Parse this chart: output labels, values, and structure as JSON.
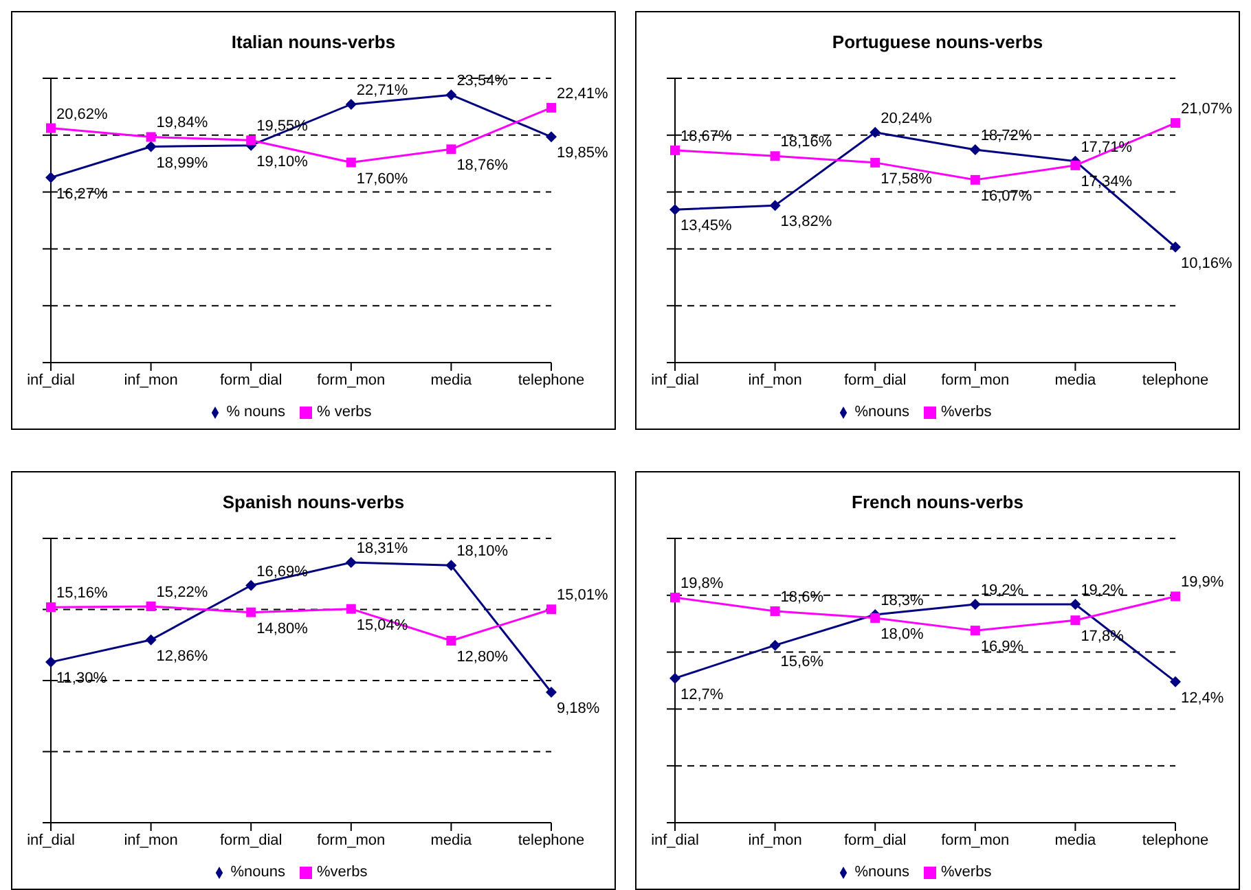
{
  "chart_data": [
    {
      "type": "line",
      "title": "Italian nouns-verbs",
      "categories": [
        "inf_dial",
        "inf_mon",
        "form_dial",
        "form_mon",
        "media",
        "telephone"
      ],
      "ylim": [
        0,
        25
      ],
      "yticks": [
        {
          "value": 0,
          "label": null
        },
        {
          "value": 5,
          "label": null
        },
        {
          "value": 10,
          "label": null
        },
        {
          "value": 15,
          "label": null
        },
        {
          "value": 20,
          "label": null
        },
        {
          "value": 25,
          "label": null
        }
      ],
      "tick_labels": "x",
      "grid": "y",
      "legend": "bottom",
      "series": [
        {
          "name": "% nouns",
          "color": "#000080",
          "marker": "diamond",
          "values": [
            16.27,
            18.99,
            19.1,
            22.71,
            23.54,
            19.85
          ],
          "value_labels": [
            "16,27%",
            "18,99%",
            "19,10%",
            "22,71%",
            "23,54%",
            "19,85%"
          ]
        },
        {
          "name": "% verbs",
          "color": "#ff00ff",
          "marker": "square",
          "values": [
            20.62,
            19.84,
            19.55,
            17.6,
            18.76,
            22.41
          ],
          "value_labels": [
            "20,62%",
            "19,84%",
            "19,55%",
            "17,60%",
            "18,76%",
            "22,41%"
          ]
        }
      ]
    },
    {
      "type": "line",
      "title": "Portuguese nouns-verbs",
      "categories": [
        "inf_dial",
        "inf_mon",
        "form_dial",
        "form_mon",
        "media",
        "telephone"
      ],
      "ylim": [
        0,
        25
      ],
      "yticks": [
        {
          "value": 0,
          "label": null
        },
        {
          "value": 5,
          "label": null
        },
        {
          "value": 10,
          "label": null
        },
        {
          "value": 15,
          "label": null
        },
        {
          "value": 20,
          "label": null
        },
        {
          "value": 25,
          "label": null
        }
      ],
      "tick_labels": "x",
      "grid": "y",
      "legend": "bottom",
      "series": [
        {
          "name": "%nouns",
          "color": "#000080",
          "marker": "diamond",
          "values": [
            13.45,
            13.82,
            20.24,
            18.72,
            17.71,
            10.16
          ],
          "value_labels": [
            "13,45%",
            "13,82%",
            "20,24%",
            "18,72%",
            "17,71%",
            "10,16%"
          ]
        },
        {
          "name": "%verbs",
          "color": "#ff00ff",
          "marker": "square",
          "values": [
            18.67,
            18.16,
            17.58,
            16.07,
            17.34,
            21.07
          ],
          "value_labels": [
            "18,67%",
            "18,16%",
            "17,58%",
            "16,07%",
            "17,34%",
            "21,07%"
          ]
        }
      ]
    },
    {
      "type": "line",
      "title": "Spanish nouns-verbs",
      "categories": [
        "inf_dial",
        "inf_mon",
        "form_dial",
        "form_mon",
        "media",
        "telephone"
      ],
      "ylim": [
        0,
        20
      ],
      "yticks": [
        {
          "value": 0,
          "label": null
        },
        {
          "value": 5,
          "label": null
        },
        {
          "value": 10,
          "label": null
        },
        {
          "value": 15,
          "label": null
        },
        {
          "value": 20,
          "label": null
        }
      ],
      "tick_labels": "x",
      "grid": "y",
      "legend": "bottom",
      "series": [
        {
          "name": "%nouns",
          "color": "#000080",
          "marker": "diamond",
          "values": [
            11.3,
            12.86,
            16.69,
            18.31,
            18.1,
            9.18
          ],
          "value_labels": [
            "11,30%",
            "12,86%",
            "16,69%",
            "18,31%",
            "18,10%",
            "9,18%"
          ]
        },
        {
          "name": "%verbs",
          "color": "#ff00ff",
          "marker": "square",
          "values": [
            15.16,
            15.22,
            14.8,
            15.04,
            12.8,
            15.01
          ],
          "value_labels": [
            "15,16%",
            "15,22%",
            "14,80%",
            "15,04%",
            "12,80%",
            "15,01%"
          ]
        }
      ]
    },
    {
      "type": "line",
      "title": "French nouns-verbs",
      "categories": [
        "inf_dial",
        "inf_mon",
        "form_dial",
        "form_mon",
        "media",
        "telephone"
      ],
      "ylim": [
        0,
        25
      ],
      "yticks": [
        {
          "value": 0,
          "label": null
        },
        {
          "value": 5,
          "label": null
        },
        {
          "value": 10,
          "label": null
        },
        {
          "value": 15,
          "label": null
        },
        {
          "value": 20,
          "label": null
        },
        {
          "value": 25,
          "label": null
        }
      ],
      "tick_labels": "x",
      "grid": "y",
      "legend": "bottom",
      "series": [
        {
          "name": "%nouns",
          "color": "#000080",
          "marker": "diamond",
          "values": [
            12.7,
            15.6,
            18.3,
            19.2,
            19.2,
            12.4
          ],
          "value_labels": [
            "12,7%",
            "15,6%",
            "18,3%",
            "19,2%",
            "19,2%",
            "12,4%"
          ]
        },
        {
          "name": "%verbs",
          "color": "#ff00ff",
          "marker": "square",
          "values": [
            19.8,
            18.6,
            18.0,
            16.9,
            17.8,
            19.9
          ],
          "value_labels": [
            "19,8%",
            "18,6%",
            "18,0%",
            "16,9%",
            "17,8%",
            "19,9%"
          ]
        }
      ]
    }
  ]
}
